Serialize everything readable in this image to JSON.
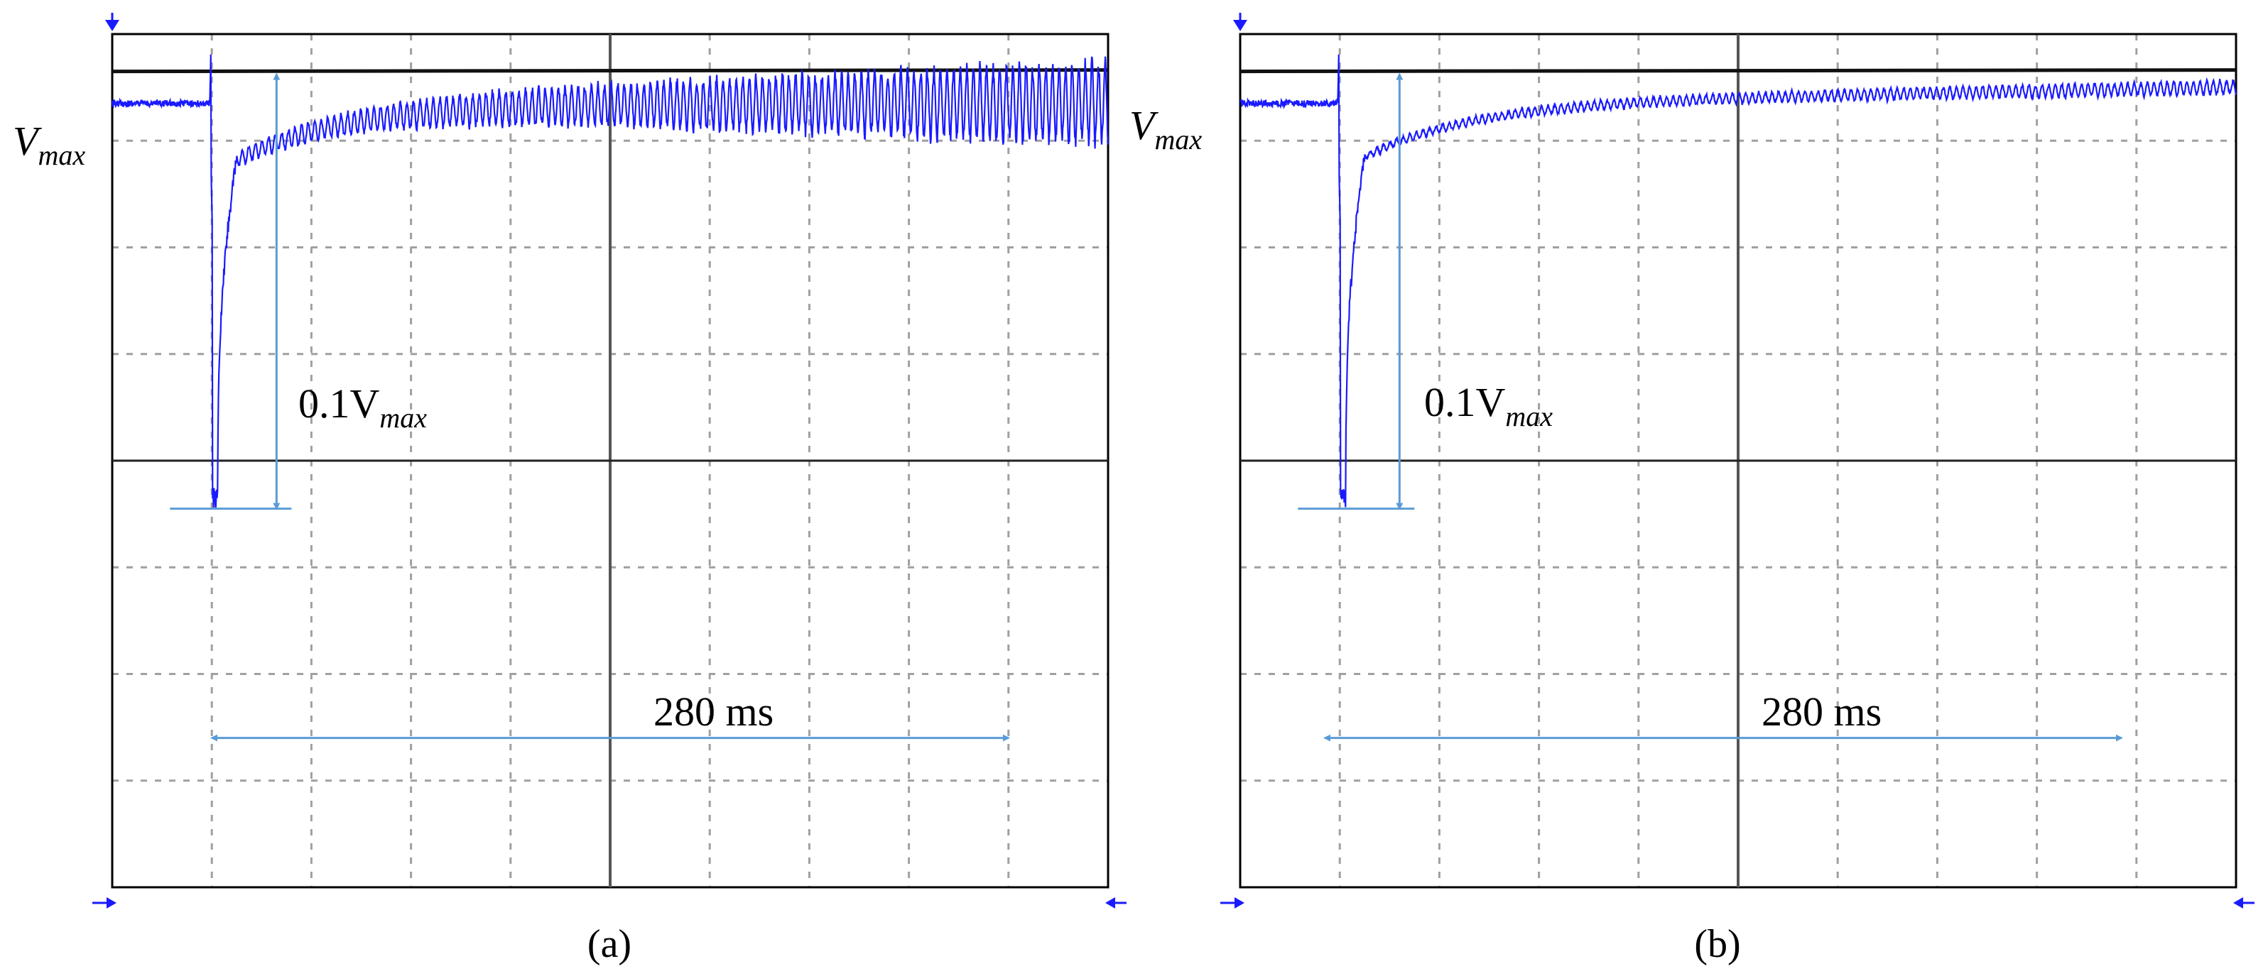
{
  "colors": {
    "trace": "#1a1aff",
    "annotation": "#5b9bd5",
    "grid": "#a0a0a0",
    "frame": "#000000",
    "reference": "#111111"
  },
  "chart_data": [
    {
      "type": "line",
      "panel": "a",
      "caption": "(a)",
      "grid": true,
      "grid_divisions": {
        "x": 10,
        "y": 8
      },
      "vmax_label": {
        "main": "V",
        "sub": "max"
      },
      "dip_label": {
        "prefix": "0.1V",
        "sub": "max"
      },
      "span_label": "280 ms",
      "series": [
        {
          "steady_div": 0.65,
          "dip_start_div": 1.0,
          "dip_min_div": 4.45,
          "recovery_div": 1.18,
          "ripple": {
            "start_div": 0.08,
            "end_div": 0.45
          },
          "drift_end_div": 0.0
        }
      ],
      "vmax_div": 0.35,
      "dip_marker_div": 1.65,
      "span_start_div": 1.0,
      "span_end_div": 9.0,
      "span_div_y": 6.6
    },
    {
      "type": "line",
      "panel": "b",
      "caption": "(b)",
      "grid": true,
      "grid_divisions": {
        "x": 10,
        "y": 8
      },
      "vmax_label": {
        "main": "V",
        "sub": "max"
      },
      "dip_label": {
        "prefix": "0.1V",
        "sub": "max"
      },
      "span_label": "280 ms",
      "series": [
        {
          "steady_div": 0.65,
          "dip_start_div": 1.0,
          "dip_min_div": 4.45,
          "recovery_div": 1.15,
          "ripple": {
            "start_div": 0.04,
            "end_div": 0.08
          },
          "drift_end_div": 0.15
        }
      ],
      "vmax_div": 0.35,
      "dip_marker_div": 1.6,
      "span_start_div": 0.85,
      "span_end_div": 8.85,
      "span_div_y": 6.6
    }
  ]
}
